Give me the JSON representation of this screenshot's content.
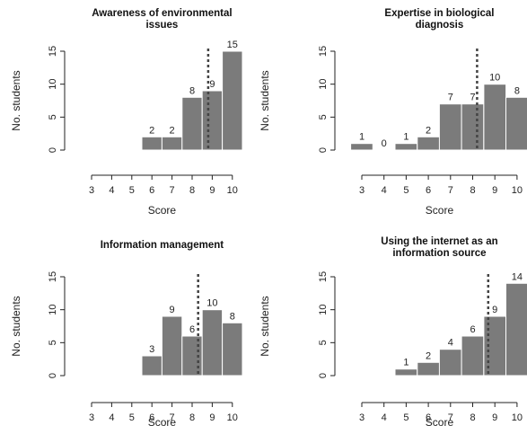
{
  "chart_data": [
    {
      "type": "bar",
      "title_lines": [
        "Awareness of environmental",
        "issues"
      ],
      "xlabel": "Score",
      "ylabel": "No. students",
      "categories": [
        3,
        4,
        5,
        6,
        7,
        8,
        9,
        10
      ],
      "values": [
        0,
        0,
        0,
        2,
        2,
        8,
        9,
        15
      ],
      "value_labels": [
        "",
        "",
        "",
        "2",
        "2",
        "8",
        "9",
        "15"
      ],
      "yticks": [
        "0",
        "5",
        "10",
        "15"
      ],
      "ylim": [
        0,
        15
      ],
      "dashed_line_x": 8.8
    },
    {
      "type": "bar",
      "title_lines": [
        "Expertise in biological",
        "diagnosis"
      ],
      "xlabel": "Score",
      "ylabel": "No. students",
      "categories": [
        3,
        4,
        5,
        6,
        7,
        8,
        9,
        10
      ],
      "values": [
        1,
        0,
        1,
        2,
        7,
        7,
        10,
        8
      ],
      "value_labels": [
        "1",
        "0",
        "1",
        "2",
        "7",
        "7",
        "10",
        "8"
      ],
      "yticks": [
        "0",
        "5",
        "10",
        "15"
      ],
      "ylim": [
        0,
        15
      ],
      "dashed_line_x": 8.2
    },
    {
      "type": "bar",
      "title_lines": [
        "Information management"
      ],
      "xlabel": "Score",
      "ylabel": "No. students",
      "categories": [
        3,
        4,
        5,
        6,
        7,
        8,
        9,
        10
      ],
      "values": [
        0,
        0,
        0,
        3,
        9,
        6,
        10,
        8
      ],
      "value_labels": [
        "",
        "",
        "",
        "3",
        "9",
        "6",
        "10",
        "8"
      ],
      "yticks": [
        "0",
        "5",
        "10",
        "15"
      ],
      "ylim": [
        0,
        15
      ],
      "dashed_line_x": 8.3
    },
    {
      "type": "bar",
      "title_lines": [
        "Using the internet as an",
        "information source"
      ],
      "xlabel": "Score",
      "ylabel": "No. students",
      "categories": [
        3,
        4,
        5,
        6,
        7,
        8,
        9,
        10
      ],
      "values": [
        0,
        0,
        1,
        2,
        4,
        6,
        9,
        14
      ],
      "value_labels": [
        "",
        "",
        "1",
        "2",
        "4",
        "6",
        "9",
        "14"
      ],
      "yticks": [
        "0",
        "5",
        "10",
        "15"
      ],
      "ylim": [
        0,
        15
      ],
      "dashed_line_x": 8.7
    }
  ]
}
